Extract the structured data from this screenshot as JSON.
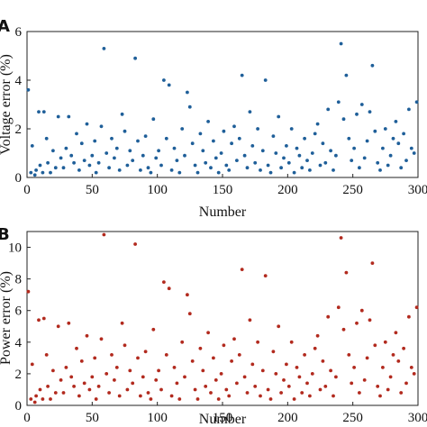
{
  "chart_data": [
    {
      "type": "scatter",
      "panel": "A",
      "xlabel": "Number",
      "ylabel": "Voltage error (%)",
      "xlim": [
        0,
        300
      ],
      "ylim": [
        0,
        6
      ],
      "xticks": [
        0,
        50,
        100,
        150,
        200,
        250,
        300
      ],
      "yticks": [
        0,
        2,
        4,
        6
      ],
      "grid": false,
      "marker_color": "#1f5f99",
      "series": [
        {
          "x": [
            1,
            3,
            4,
            6,
            7,
            9,
            10,
            12,
            13,
            15,
            16,
            18,
            20,
            22,
            24,
            26,
            28,
            30,
            32,
            34,
            36,
            38,
            40,
            42,
            44,
            46,
            48,
            50,
            52,
            53,
            55,
            57,
            59,
            61,
            63,
            65,
            67,
            69,
            71,
            73,
            75,
            77,
            79,
            81,
            83,
            85,
            87,
            89,
            91,
            93,
            95,
            97,
            99,
            101,
            103,
            105,
            107,
            109,
            111,
            113,
            115,
            117,
            119,
            121,
            123,
            125,
            127,
            129,
            131,
            133,
            135,
            137,
            139,
            141,
            143,
            145,
            147,
            149,
            151,
            153,
            155,
            157,
            159,
            161,
            163,
            165,
            167,
            169,
            171,
            173,
            175,
            177,
            179,
            181,
            183,
            185,
            187,
            189,
            191,
            193,
            195,
            197,
            199,
            201,
            203,
            205,
            207,
            209,
            211,
            213,
            215,
            217,
            219,
            221,
            223,
            225,
            227,
            229,
            231,
            233,
            235,
            237,
            239,
            241,
            243,
            245,
            247,
            249,
            251,
            253,
            255,
            257,
            259,
            261,
            263,
            265,
            267,
            269,
            271,
            273,
            275,
            277,
            279,
            281,
            283,
            285,
            287,
            289,
            291,
            293,
            295,
            297,
            299
          ],
          "y": [
            3.6,
            0.2,
            1.3,
            0.1,
            0.3,
            2.7,
            0.5,
            0.2,
            2.7,
            1.6,
            0.6,
            0.2,
            1.1,
            0.4,
            2.5,
            0.8,
            0.4,
            1.2,
            2.5,
            0.9,
            0.6,
            1.8,
            0.3,
            1.4,
            0.7,
            2.2,
            0.5,
            0.9,
            1.5,
            0.2,
            0.6,
            2.1,
            5.3,
            1.0,
            0.4,
            1.6,
            0.8,
            1.2,
            0.3,
            2.6,
            1.9,
            0.5,
            1.1,
            0.7,
            4.9,
            1.5,
            0.3,
            0.9,
            1.7,
            0.4,
            0.2,
            2.4,
            0.8,
            1.1,
            0.5,
            4.0,
            1.6,
            3.8,
            0.3,
            1.2,
            0.7,
            0.2,
            2.0,
            0.9,
            3.5,
            2.9,
            1.4,
            0.5,
            0.2,
            1.8,
            1.1,
            0.6,
            2.3,
            0.4,
            1.5,
            0.8,
            0.2,
            1.0,
            1.9,
            0.5,
            0.3,
            1.4,
            2.1,
            0.7,
            1.6,
            4.2,
            0.9,
            0.4,
            2.7,
            1.3,
            0.6,
            2.0,
            0.3,
            1.1,
            4.0,
            0.5,
            0.2,
            1.7,
            1.0,
            2.5,
            0.4,
            0.8,
            1.3,
            0.6,
            2.0,
            0.2,
            1.2,
            0.9,
            0.4,
            1.6,
            0.7,
            0.3,
            1.0,
            1.8,
            2.2,
            0.5,
            1.4,
            0.6,
            2.8,
            1.1,
            0.3,
            0.9,
            3.1,
            5.5,
            2.4,
            4.2,
            1.6,
            0.7,
            1.2,
            2.6,
            0.4,
            3.0,
            0.8,
            1.5,
            2.7,
            4.6,
            1.9,
            0.6,
            0.3,
            1.2,
            2.0,
            0.5,
            0.9,
            1.6,
            2.3,
            1.4,
            0.4,
            1.8,
            0.7,
            2.8,
            1.2,
            1.0,
            3.1
          ]
        }
      ]
    },
    {
      "type": "scatter",
      "panel": "B",
      "xlabel": "Number",
      "ylabel": "Power error (%)",
      "xlim": [
        0,
        300
      ],
      "ylim": [
        0,
        11
      ],
      "xticks": [
        0,
        50,
        100,
        150,
        200,
        250,
        300
      ],
      "yticks": [
        0,
        2,
        4,
        6,
        8,
        10
      ],
      "grid": false,
      "marker_color": "#b22a1e",
      "series": [
        {
          "x": [
            1,
            3,
            4,
            6,
            7,
            9,
            10,
            12,
            13,
            15,
            16,
            18,
            20,
            22,
            24,
            26,
            28,
            30,
            32,
            34,
            36,
            38,
            40,
            42,
            44,
            46,
            48,
            50,
            52,
            53,
            55,
            57,
            59,
            61,
            63,
            65,
            67,
            69,
            71,
            73,
            75,
            77,
            79,
            81,
            83,
            85,
            87,
            89,
            91,
            93,
            95,
            97,
            99,
            101,
            103,
            105,
            107,
            109,
            111,
            113,
            115,
            117,
            119,
            121,
            123,
            125,
            127,
            129,
            131,
            133,
            135,
            137,
            139,
            141,
            143,
            145,
            147,
            149,
            151,
            153,
            155,
            157,
            159,
            161,
            163,
            165,
            167,
            169,
            171,
            173,
            175,
            177,
            179,
            181,
            183,
            185,
            187,
            189,
            191,
            193,
            195,
            197,
            199,
            201,
            203,
            205,
            207,
            209,
            211,
            213,
            215,
            217,
            219,
            221,
            223,
            225,
            227,
            229,
            231,
            233,
            235,
            237,
            239,
            241,
            243,
            245,
            247,
            249,
            251,
            253,
            255,
            257,
            259,
            261,
            263,
            265,
            267,
            269,
            271,
            273,
            275,
            277,
            279,
            281,
            283,
            285,
            287,
            289,
            291,
            293,
            295,
            297,
            299
          ],
          "y": [
            7.2,
            0.4,
            2.6,
            0.2,
            0.6,
            5.4,
            1.0,
            0.4,
            5.5,
            3.2,
            1.2,
            0.4,
            2.2,
            0.8,
            5.0,
            1.6,
            0.8,
            2.4,
            5.2,
            1.8,
            1.2,
            3.6,
            0.6,
            2.8,
            1.4,
            4.4,
            1.0,
            1.8,
            3.0,
            0.4,
            1.2,
            4.2,
            10.8,
            2.0,
            0.8,
            3.2,
            1.6,
            2.4,
            0.6,
            5.2,
            3.8,
            1.0,
            2.2,
            1.4,
            10.2,
            3.0,
            0.6,
            1.8,
            3.4,
            0.8,
            0.4,
            4.8,
            1.6,
            2.2,
            1.0,
            7.8,
            3.2,
            7.4,
            0.6,
            2.4,
            1.4,
            0.4,
            4.0,
            1.8,
            7.0,
            5.8,
            2.8,
            1.0,
            0.4,
            3.6,
            2.2,
            1.2,
            4.6,
            0.8,
            3.0,
            1.6,
            0.4,
            2.0,
            3.8,
            1.0,
            0.6,
            2.8,
            4.2,
            1.4,
            3.2,
            8.6,
            1.8,
            0.8,
            5.4,
            2.6,
            1.2,
            4.0,
            0.6,
            2.2,
            8.2,
            1.0,
            0.4,
            3.4,
            2.0,
            5.0,
            0.8,
            1.6,
            2.6,
            1.2,
            4.0,
            0.4,
            2.4,
            1.8,
            0.8,
            3.2,
            1.4,
            0.6,
            2.0,
            3.6,
            4.4,
            1.0,
            2.8,
            1.2,
            5.6,
            2.2,
            0.6,
            1.8,
            6.2,
            10.6,
            4.8,
            8.4,
            3.2,
            1.4,
            2.4,
            5.2,
            0.8,
            6.0,
            1.6,
            3.0,
            5.4,
            9.0,
            3.8,
            1.2,
            0.6,
            2.4,
            4.0,
            1.0,
            1.8,
            3.2,
            4.6,
            2.8,
            0.8,
            3.6,
            1.4,
            5.6,
            2.4,
            2.0,
            6.2
          ]
        }
      ]
    }
  ]
}
